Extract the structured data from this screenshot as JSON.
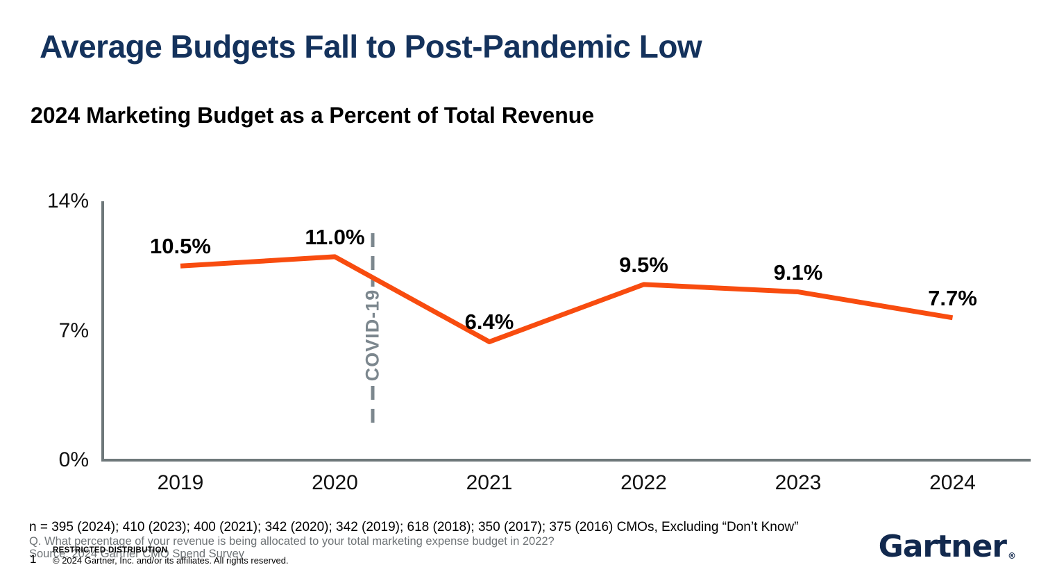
{
  "header": {
    "title": "Average Budgets Fall to Post-Pandemic Low",
    "subtitle": "2024 Marketing Budget as a Percent of Total Revenue"
  },
  "chart_data": {
    "type": "line",
    "title": "2024 Marketing Budget as a Percent of Total Revenue",
    "categories": [
      "2019",
      "2020",
      "2021",
      "2022",
      "2023",
      "2024"
    ],
    "values": [
      10.5,
      11.0,
      6.4,
      9.5,
      9.1,
      7.7
    ],
    "point_labels": [
      "10.5%",
      "11.0%",
      "6.4%",
      "9.5%",
      "9.1%",
      "7.7%"
    ],
    "xlabel": "",
    "ylabel": "",
    "ylim": [
      0,
      14
    ],
    "yticks": [
      {
        "value": 14,
        "label": "14%"
      },
      {
        "value": 7,
        "label": "7%"
      },
      {
        "value": 0,
        "label": "0%"
      }
    ],
    "grid": false,
    "legend": false,
    "line_color": "#F84C0F",
    "axis_color": "#6E787A",
    "annotation": {
      "text": "COVID-19",
      "style": "dashed-vertical-line",
      "position": "between 2020 and 2021",
      "color": "#7C878E"
    }
  },
  "footer": {
    "n_note": "n = 395 (2024); 410 (2023); 400 (2021); 342 (2020); 342 (2019); 618 (2018); 350 (2017); 375 (2016) CMOs, Excluding “Don’t Know”",
    "question": "Q. What percentage of your revenue is being allocated to your total marketing expense budget in 2022?",
    "source": "Source: 2024 Gartner CMO Spend Survey",
    "restricted": "RESTRICTED DISTRIBUTION",
    "page_number": "1",
    "copyright": "© 2024 Gartner, Inc. and/or its affiliates. All rights reserved.",
    "logo": "Gartner",
    "logo_mark": "®"
  }
}
